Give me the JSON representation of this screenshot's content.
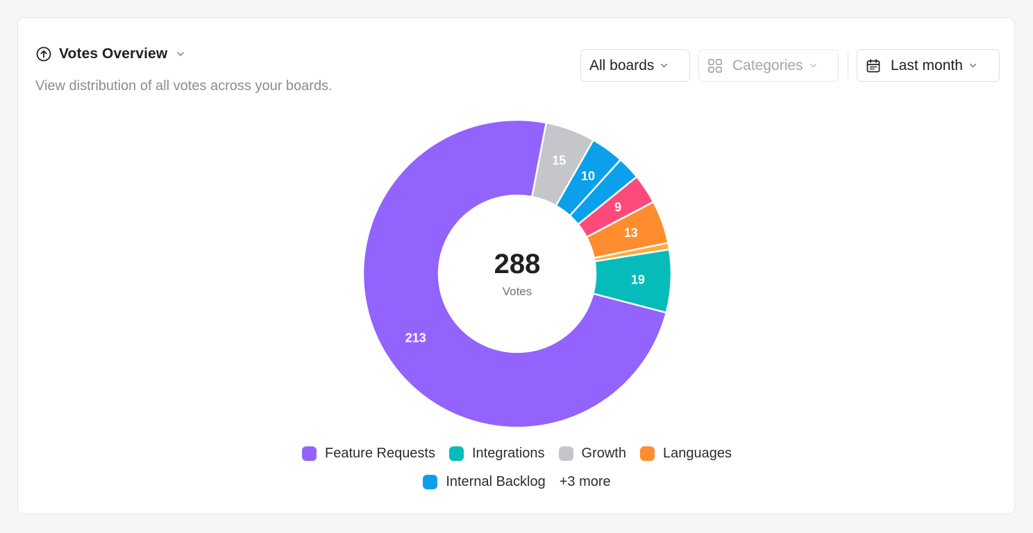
{
  "header": {
    "title": "Votes Overview",
    "subtitle": "View distribution of all votes across your boards."
  },
  "filters": {
    "boards": "All boards",
    "categories": "Categories",
    "period": "Last month"
  },
  "center": {
    "total": "288",
    "label": "Votes"
  },
  "legend": {
    "items": [
      {
        "label": "Feature Requests",
        "color": "#9263fd"
      },
      {
        "label": "Integrations",
        "color": "#05bcbb"
      },
      {
        "label": "Growth",
        "color": "#c4c6ca"
      },
      {
        "label": "Languages",
        "color": "#ff8c2f"
      },
      {
        "label": "Internal Backlog",
        "color": "#0aa0ec"
      }
    ],
    "more": "+3 more"
  },
  "chart_data": {
    "type": "pie",
    "total": 288,
    "slices": [
      {
        "value": 213,
        "label": "213",
        "color": "#9263fd"
      },
      {
        "value": 15,
        "label": "15",
        "color": "#c4c6ca"
      },
      {
        "value": 10,
        "label": "10",
        "color": "#0aa0ec"
      },
      {
        "value": 7,
        "label": "",
        "color": "#0aa0ec"
      },
      {
        "value": 9,
        "label": "9",
        "color": "#fc4b7a"
      },
      {
        "value": 13,
        "label": "13",
        "color": "#ff8c2f"
      },
      {
        "value": 2,
        "label": "",
        "color": "#ffac3d"
      },
      {
        "value": 19,
        "label": "19",
        "color": "#05bcbb"
      }
    ]
  }
}
